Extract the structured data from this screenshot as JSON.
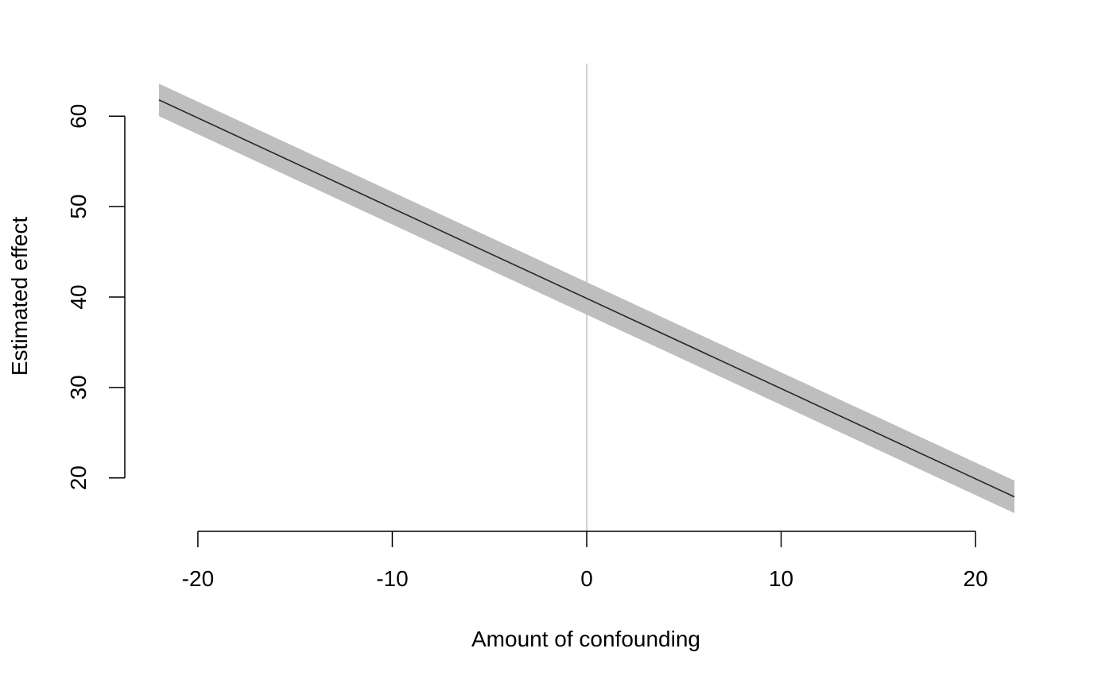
{
  "chart_data": {
    "type": "line",
    "title": "",
    "xlabel": "Amount of confounding",
    "ylabel": "Estimated effect",
    "xlim": [
      -22,
      22
    ],
    "ylim": [
      14,
      66
    ],
    "xticks": [
      -20,
      -10,
      0,
      10,
      20
    ],
    "xtick_labels": [
      "-20",
      "-10",
      "0",
      "10",
      "20"
    ],
    "yticks": [
      20,
      30,
      40,
      50,
      60
    ],
    "ytick_labels": [
      "20",
      "30",
      "40",
      "50",
      "60"
    ],
    "reference_line": {
      "x": 0,
      "color": "#bfbfbf"
    },
    "series": [
      {
        "x": [
          -22,
          22
        ],
        "y": [
          61.8,
          17.9
        ],
        "ci_lower": [
          60.0,
          16.1
        ],
        "ci_upper": [
          63.6,
          19.7
        ],
        "line_color": "#262626",
        "band_color": "#bebebe"
      }
    ],
    "grid": false,
    "legend": "none"
  }
}
